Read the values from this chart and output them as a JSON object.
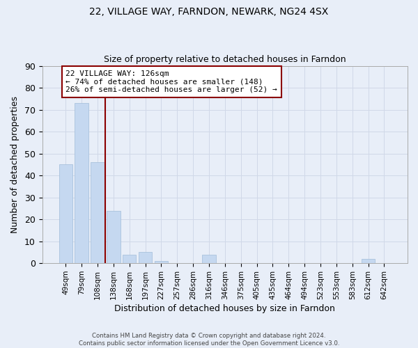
{
  "title": "22, VILLAGE WAY, FARNDON, NEWARK, NG24 4SX",
  "subtitle": "Size of property relative to detached houses in Farndon",
  "xlabel": "Distribution of detached houses by size in Farndon",
  "ylabel": "Number of detached properties",
  "bar_color": "#c5d8f0",
  "bar_edge_color": "#a0bcd8",
  "categories": [
    "49sqm",
    "79sqm",
    "108sqm",
    "138sqm",
    "168sqm",
    "197sqm",
    "227sqm",
    "257sqm",
    "286sqm",
    "316sqm",
    "346sqm",
    "375sqm",
    "405sqm",
    "435sqm",
    "464sqm",
    "494sqm",
    "523sqm",
    "553sqm",
    "583sqm",
    "612sqm",
    "642sqm"
  ],
  "values": [
    45,
    73,
    46,
    24,
    4,
    5,
    1,
    0,
    0,
    4,
    0,
    0,
    0,
    0,
    0,
    0,
    0,
    0,
    0,
    2,
    0
  ],
  "ylim": [
    0,
    90
  ],
  "yticks": [
    0,
    10,
    20,
    30,
    40,
    50,
    60,
    70,
    80,
    90
  ],
  "vline_color": "#8b0000",
  "annotation_line1": "22 VILLAGE WAY: 126sqm",
  "annotation_line2": "← 74% of detached houses are smaller (148)",
  "annotation_line3": "26% of semi-detached houses are larger (52) →",
  "annotation_box_color": "white",
  "annotation_box_edge": "#8b0000",
  "footer_text": "Contains HM Land Registry data © Crown copyright and database right 2024.\nContains public sector information licensed under the Open Government Licence v3.0.",
  "background_color": "#e8eef8",
  "grid_color": "#d0d8e8"
}
